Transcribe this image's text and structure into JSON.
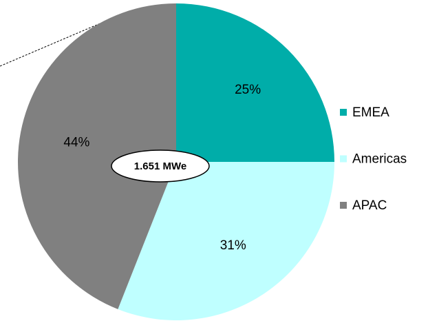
{
  "chart_data": {
    "type": "pie",
    "categories": [
      "EMEA",
      "Americas",
      "APAC"
    ],
    "values": [
      25,
      31,
      44
    ],
    "value_labels": [
      "25%",
      "31%",
      "44%"
    ],
    "colors": [
      "#00ADA9",
      "#BFFFFF",
      "#808080"
    ],
    "center_label": "1.651 MWe",
    "legend": "right"
  }
}
